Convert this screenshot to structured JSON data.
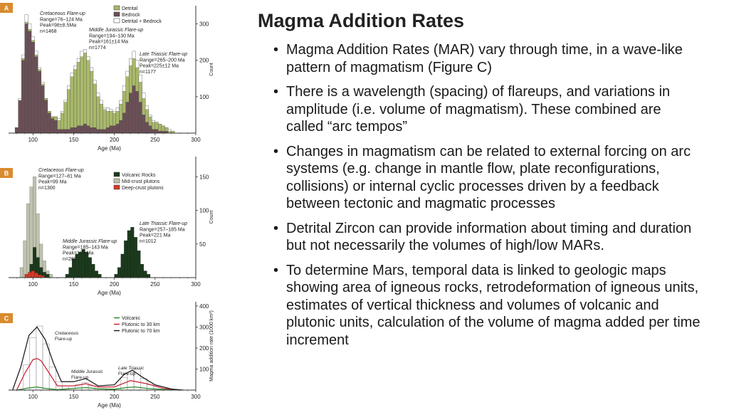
{
  "title": "Magma Addition Rates",
  "bullets": [
    "Magma Addition Rates (MAR) vary through time, in a wave-like pattern of magmatism (Figure C)",
    "There is a wavelength (spacing) of flareups, and variations in amplitude (i.e. volume of magmatism). These combined are called “arc tempos”",
    "Changes in magmatism can be related to external forcing on arc systems (e.g. change in mantle flow, plate reconfigurations, collisions) or internal cyclic processes driven by a feedback between tectonic and magmatic processes",
    "Detrital Zircon can provide information about timing and duration but not necessarily the volumes of high/low MARs.",
    "To determine Mars, temporal data is linked to geologic maps showing area of igneous rocks, retrodeformation of igneous units, estimates of vertical thickness and volumes of volcanic and plutonic units, calculation of the volume of magma added per time increment"
  ],
  "chart_data": [
    {
      "type": "bar",
      "panel_label": "A",
      "xlabel": "Age (Ma)",
      "ylabel": "Count",
      "xlim": [
        70,
        300
      ],
      "ylim": [
        0,
        350
      ],
      "x_ticks": [
        100,
        150,
        200,
        250,
        300
      ],
      "y_ticks": [
        100,
        200,
        300
      ],
      "legend": [
        "Detrital",
        "Bedrock",
        "Detrital + Bedrock"
      ],
      "legend_position": "top-right",
      "colors": {
        "detrital": "#a9b96a",
        "bedrock": "#6b4f56",
        "combined": "#ffffff"
      },
      "annotations": [
        {
          "lines": [
            "Cretaceous Flare-up",
            "Range=76–124 Ma",
            "Peak=98±8.5Ma",
            "n=1468"
          ]
        },
        {
          "lines": [
            "Middle Jurassic Flare-up",
            "Range=194–130 Ma",
            "Peak=161±14 Ma",
            "n=1774"
          ]
        },
        {
          "lines": [
            "Late Triassic Flare-up",
            "Range=265–200 Ma",
            "Peak=225±12 Ma",
            "n=1177"
          ]
        }
      ],
      "bins": [
        {
          "x": 78,
          "detrital": 0,
          "bedrock": 15,
          "total": 15
        },
        {
          "x": 82,
          "detrital": 0,
          "bedrock": 90,
          "total": 95
        },
        {
          "x": 86,
          "detrital": 5,
          "bedrock": 200,
          "total": 215
        },
        {
          "x": 90,
          "detrital": 5,
          "bedrock": 300,
          "total": 325
        },
        {
          "x": 94,
          "detrital": 5,
          "bedrock": 280,
          "total": 300
        },
        {
          "x": 98,
          "detrital": 5,
          "bedrock": 250,
          "total": 265
        },
        {
          "x": 102,
          "detrital": 5,
          "bedrock": 210,
          "total": 225
        },
        {
          "x": 106,
          "detrital": 5,
          "bedrock": 170,
          "total": 180
        },
        {
          "x": 110,
          "detrital": 5,
          "bedrock": 130,
          "total": 140
        },
        {
          "x": 114,
          "detrital": 5,
          "bedrock": 90,
          "total": 95
        },
        {
          "x": 118,
          "detrital": 5,
          "bedrock": 55,
          "total": 60
        },
        {
          "x": 122,
          "detrital": 5,
          "bedrock": 40,
          "total": 45
        },
        {
          "x": 126,
          "detrital": 10,
          "bedrock": 35,
          "total": 45
        },
        {
          "x": 130,
          "detrital": 25,
          "bedrock": 10,
          "total": 40
        },
        {
          "x": 134,
          "detrital": 45,
          "bedrock": 10,
          "total": 60
        },
        {
          "x": 138,
          "detrital": 75,
          "bedrock": 10,
          "total": 90
        },
        {
          "x": 142,
          "detrital": 110,
          "bedrock": 10,
          "total": 130
        },
        {
          "x": 146,
          "detrital": 140,
          "bedrock": 15,
          "total": 165
        },
        {
          "x": 150,
          "detrital": 160,
          "bedrock": 15,
          "total": 185
        },
        {
          "x": 154,
          "detrital": 175,
          "bedrock": 20,
          "total": 205
        },
        {
          "x": 158,
          "detrital": 190,
          "bedrock": 20,
          "total": 225
        },
        {
          "x": 162,
          "detrital": 195,
          "bedrock": 25,
          "total": 230
        },
        {
          "x": 166,
          "detrital": 180,
          "bedrock": 20,
          "total": 210
        },
        {
          "x": 170,
          "detrital": 155,
          "bedrock": 15,
          "total": 180
        },
        {
          "x": 174,
          "detrital": 120,
          "bedrock": 15,
          "total": 145
        },
        {
          "x": 178,
          "detrital": 90,
          "bedrock": 10,
          "total": 110
        },
        {
          "x": 182,
          "detrital": 70,
          "bedrock": 10,
          "total": 90
        },
        {
          "x": 186,
          "detrital": 55,
          "bedrock": 10,
          "total": 70
        },
        {
          "x": 190,
          "detrital": 45,
          "bedrock": 15,
          "total": 70
        },
        {
          "x": 194,
          "detrital": 40,
          "bedrock": 20,
          "total": 65
        },
        {
          "x": 198,
          "detrital": 35,
          "bedrock": 20,
          "total": 60
        },
        {
          "x": 202,
          "detrital": 35,
          "bedrock": 25,
          "total": 70
        },
        {
          "x": 206,
          "detrital": 45,
          "bedrock": 35,
          "total": 90
        },
        {
          "x": 210,
          "detrital": 60,
          "bedrock": 55,
          "total": 130
        },
        {
          "x": 214,
          "detrital": 70,
          "bedrock": 85,
          "total": 170
        },
        {
          "x": 218,
          "detrital": 75,
          "bedrock": 110,
          "total": 205
        },
        {
          "x": 222,
          "detrital": 75,
          "bedrock": 130,
          "total": 225
        },
        {
          "x": 226,
          "detrital": 65,
          "bedrock": 115,
          "total": 200
        },
        {
          "x": 230,
          "detrital": 55,
          "bedrock": 85,
          "total": 160
        },
        {
          "x": 234,
          "detrital": 45,
          "bedrock": 50,
          "total": 110
        },
        {
          "x": 238,
          "detrital": 35,
          "bedrock": 30,
          "total": 75
        },
        {
          "x": 242,
          "detrital": 25,
          "bedrock": 20,
          "total": 50
        },
        {
          "x": 246,
          "detrital": 20,
          "bedrock": 10,
          "total": 35
        },
        {
          "x": 250,
          "detrital": 20,
          "bedrock": 10,
          "total": 30
        },
        {
          "x": 254,
          "detrital": 20,
          "bedrock": 5,
          "total": 25
        },
        {
          "x": 258,
          "detrital": 15,
          "bedrock": 5,
          "total": 20
        },
        {
          "x": 262,
          "detrital": 10,
          "bedrock": 5,
          "total": 15
        },
        {
          "x": 266,
          "detrital": 5,
          "bedrock": 0,
          "total": 10
        },
        {
          "x": 270,
          "detrital": 5,
          "bedrock": 0,
          "total": 5
        }
      ]
    },
    {
      "type": "bar",
      "panel_label": "B",
      "xlabel": "Age (Ma)",
      "ylabel": "Count",
      "xlim": [
        70,
        300
      ],
      "ylim": [
        0,
        180
      ],
      "x_ticks": [
        100,
        150,
        200,
        250,
        300
      ],
      "y_ticks": [
        50,
        100,
        150
      ],
      "legend": [
        "Volcanic Rocks",
        "Mid-crust plutons",
        "Deep-crust plutons"
      ],
      "legend_position": "top-right",
      "colors": {
        "volcanic": "#1c3a1c",
        "mid_crust": "#bfc2ae",
        "deep_crust": "#d23a2a"
      },
      "annotations": [
        {
          "lines": [
            "Cretaceous Flare-up",
            "Range=127–81 Ma",
            "Peak=99 Ma",
            "n=1300"
          ]
        },
        {
          "lines": [
            "Middle Jurassic Flare-up",
            "Range=185–143 Ma",
            "Peak=162 Ma",
            "n=280"
          ]
        },
        {
          "lines": [
            "Late Triassic Flare-up",
            "Range=257–185 Ma",
            "Peak=221 Ma",
            "n=1012"
          ]
        }
      ],
      "mid_crust_bins": [
        {
          "x": 84,
          "v": 15
        },
        {
          "x": 88,
          "v": 55
        },
        {
          "x": 92,
          "v": 110
        },
        {
          "x": 96,
          "v": 135
        },
        {
          "x": 100,
          "v": 150
        },
        {
          "x": 104,
          "v": 95
        },
        {
          "x": 108,
          "v": 50
        },
        {
          "x": 112,
          "v": 25
        },
        {
          "x": 116,
          "v": 10
        },
        {
          "x": 120,
          "v": 5
        }
      ],
      "volcanic_bins": [
        {
          "x": 96,
          "v": 20
        },
        {
          "x": 100,
          "v": 45
        },
        {
          "x": 104,
          "v": 30
        },
        {
          "x": 108,
          "v": 15
        },
        {
          "x": 112,
          "v": 8
        },
        {
          "x": 116,
          "v": 5
        },
        {
          "x": 140,
          "v": 5
        },
        {
          "x": 144,
          "v": 15
        },
        {
          "x": 148,
          "v": 28
        },
        {
          "x": 152,
          "v": 35
        },
        {
          "x": 156,
          "v": 38
        },
        {
          "x": 160,
          "v": 42
        },
        {
          "x": 164,
          "v": 38
        },
        {
          "x": 168,
          "v": 30
        },
        {
          "x": 172,
          "v": 20
        },
        {
          "x": 176,
          "v": 10
        },
        {
          "x": 180,
          "v": 5
        },
        {
          "x": 200,
          "v": 5
        },
        {
          "x": 204,
          "v": 15
        },
        {
          "x": 208,
          "v": 35
        },
        {
          "x": 212,
          "v": 55
        },
        {
          "x": 216,
          "v": 70
        },
        {
          "x": 220,
          "v": 75
        },
        {
          "x": 224,
          "v": 60
        },
        {
          "x": 228,
          "v": 40
        },
        {
          "x": 232,
          "v": 20
        },
        {
          "x": 236,
          "v": 10
        },
        {
          "x": 240,
          "v": 5
        }
      ],
      "deep_crust_bins": [
        {
          "x": 90,
          "v": 5
        },
        {
          "x": 94,
          "v": 8
        },
        {
          "x": 98,
          "v": 10
        },
        {
          "x": 102,
          "v": 7
        },
        {
          "x": 106,
          "v": 4
        },
        {
          "x": 110,
          "v": 3
        }
      ]
    },
    {
      "type": "line",
      "panel_label": "C",
      "xlabel": "Age (Ma)",
      "ylabel": "Magma addition rate (1000 km³)",
      "xlim": [
        70,
        300
      ],
      "ylim": [
        0,
        420
      ],
      "x_ticks": [
        100,
        150,
        200,
        250,
        300
      ],
      "y_ticks": [
        100,
        200,
        300,
        400
      ],
      "legend_position": "top-right",
      "annotations": [
        {
          "lines": [
            "Cretaceous",
            "Flare-up"
          ]
        },
        {
          "lines": [
            "Middle Jurassic",
            "Flare-up"
          ]
        },
        {
          "lines": [
            "Late Triassic",
            "Flare-up"
          ]
        }
      ],
      "series": [
        {
          "name": "Volcanic",
          "color": "#2e8b2e",
          "x": [
            80,
            95,
            105,
            115,
            130,
            150,
            165,
            180,
            200,
            215,
            225,
            240,
            260,
            280
          ],
          "y": [
            0,
            10,
            15,
            8,
            2,
            8,
            12,
            6,
            4,
            12,
            15,
            8,
            3,
            0
          ]
        },
        {
          "name": "Plutonic to 30 km",
          "color": "#c8283c",
          "x": [
            80,
            90,
            100,
            105,
            110,
            120,
            130,
            150,
            165,
            180,
            200,
            220,
            240,
            260,
            280
          ],
          "y": [
            0,
            80,
            145,
            150,
            140,
            80,
            20,
            20,
            30,
            15,
            15,
            45,
            30,
            8,
            0
          ]
        },
        {
          "name": "Plutonic to 70 km",
          "color": "#222222",
          "x": [
            75,
            85,
            95,
            105,
            115,
            125,
            135,
            150,
            165,
            180,
            200,
            212,
            222,
            235,
            250,
            270,
            285
          ],
          "y": [
            0,
            110,
            260,
            300,
            240,
            130,
            40,
            40,
            55,
            20,
            25,
            75,
            95,
            60,
            25,
            5,
            0
          ]
        }
      ],
      "hist_bins": [
        {
          "x": 88,
          "v": 120
        },
        {
          "x": 96,
          "v": 250
        },
        {
          "x": 104,
          "v": 305
        },
        {
          "x": 112,
          "v": 220
        },
        {
          "x": 120,
          "v": 110
        },
        {
          "x": 128,
          "v": 40
        },
        {
          "x": 136,
          "v": 20
        },
        {
          "x": 152,
          "v": 25
        },
        {
          "x": 160,
          "v": 35
        },
        {
          "x": 168,
          "v": 20
        },
        {
          "x": 208,
          "v": 60
        },
        {
          "x": 216,
          "v": 85
        },
        {
          "x": 224,
          "v": 100
        },
        {
          "x": 232,
          "v": 55
        },
        {
          "x": 240,
          "v": 25
        }
      ]
    }
  ]
}
